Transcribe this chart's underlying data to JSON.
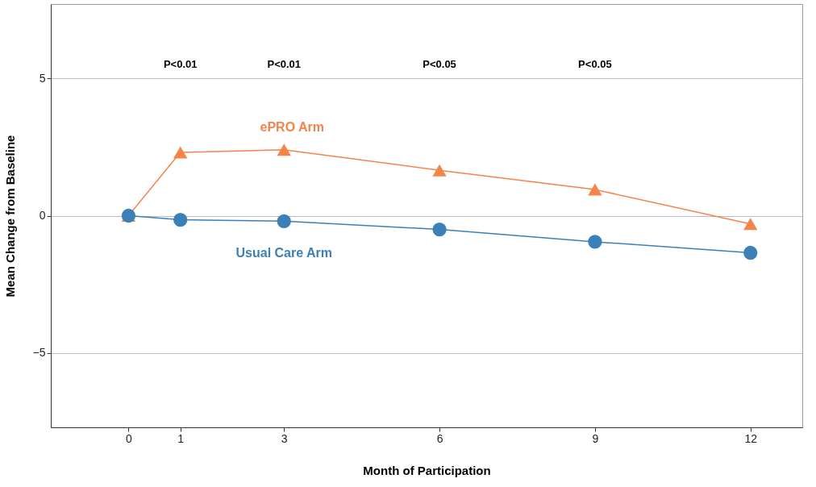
{
  "chart_data": {
    "type": "line",
    "xlabel": "Month of Participation",
    "ylabel": "Mean Change from Baseline",
    "x": [
      0,
      1,
      3,
      6,
      9,
      12
    ],
    "series": [
      {
        "name": "ePRO Arm",
        "color": "#f5844a",
        "marker": "triangle",
        "values": [
          0,
          2.3,
          2.4,
          1.65,
          0.95,
          -0.3
        ]
      },
      {
        "name": "Usual Care Arm",
        "color": "#3b80b8",
        "marker": "circle",
        "values": [
          0,
          -0.15,
          -0.2,
          -0.5,
          -0.95,
          -1.35
        ]
      }
    ],
    "xlim": [
      -1.5,
      13
    ],
    "xticks": [
      0,
      1,
      3,
      6,
      9,
      12
    ],
    "ylim": [
      -7.7,
      7.7
    ],
    "yticks": [
      -5,
      0,
      5
    ],
    "grid": "y",
    "legend": false,
    "line_style": "solid",
    "annotations": [
      "P<0.01",
      "P<0.01",
      "P<0.05",
      "P<0.05"
    ]
  }
}
